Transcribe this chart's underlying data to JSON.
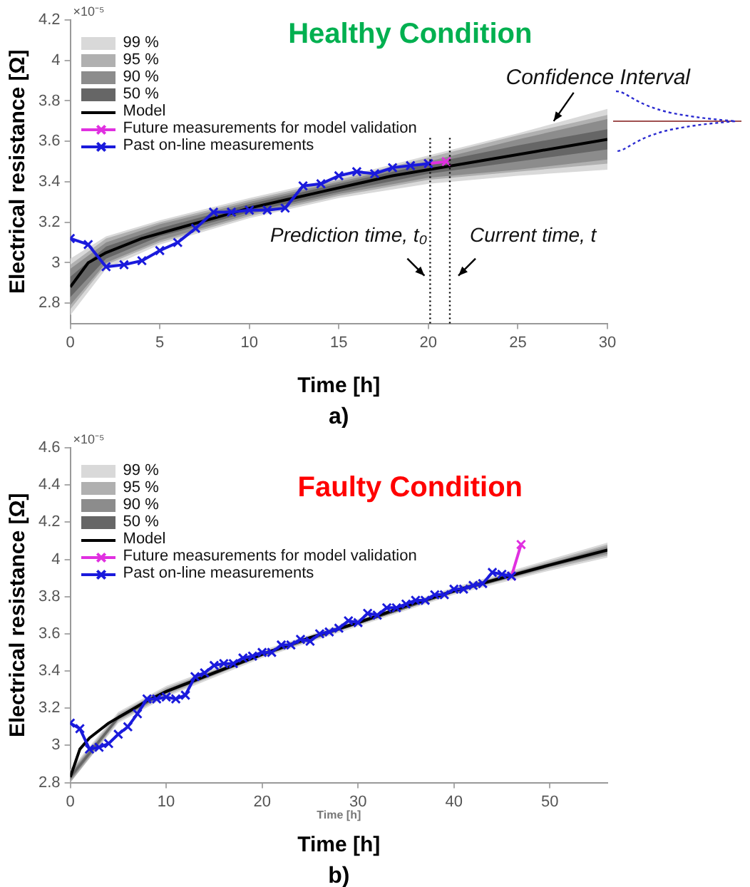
{
  "chart_data": [
    {
      "type": "line",
      "title": "Healthy Condition",
      "xlabel": "Time [h]",
      "ylabel": "Electrical resistance [Ω]",
      "xlim": [
        0,
        30
      ],
      "xticks": [
        0,
        5,
        10,
        15,
        20,
        25,
        30
      ],
      "ylim": [
        2.7,
        4.2
      ],
      "yticks": [
        2.8,
        3,
        3.2,
        3.4,
        3.6,
        3.8,
        4,
        4.2
      ],
      "grid": false,
      "legend": "top left",
      "series": [
        {
          "name": "99 %",
          "type": "line",
          "color": "#d9d9d9",
          "x": [
            0,
            2,
            5,
            10,
            15,
            20,
            25,
            30
          ],
          "values": [
            null,
            null,
            null,
            null,
            null,
            null,
            null,
            null
          ],
          "lower": [
            2.74,
            2.97,
            3.09,
            3.22,
            3.32,
            3.39,
            3.43,
            3.46
          ],
          "upper": [
            3.02,
            3.13,
            3.21,
            3.32,
            3.42,
            3.53,
            3.64,
            3.76
          ]
        },
        {
          "name": "95 %",
          "type": "line",
          "color": "#b0b0b0",
          "x": [
            0,
            2,
            5,
            10,
            15,
            20,
            25,
            30
          ],
          "values": [
            null,
            null,
            null,
            null,
            null,
            null,
            null,
            null
          ],
          "lower": [
            2.77,
            2.99,
            3.1,
            3.23,
            3.33,
            3.41,
            3.45,
            3.49
          ],
          "upper": [
            2.99,
            3.12,
            3.2,
            3.31,
            3.41,
            3.52,
            3.63,
            3.73
          ]
        },
        {
          "name": "90 %",
          "type": "line",
          "color": "#8c8c8c",
          "x": [
            0,
            2,
            5,
            10,
            15,
            20,
            25,
            30
          ],
          "values": [
            null,
            null,
            null,
            null,
            null,
            null,
            null,
            null
          ],
          "lower": [
            2.79,
            3,
            3.11,
            3.24,
            3.34,
            3.42,
            3.46,
            3.51
          ],
          "upper": [
            2.97,
            3.1,
            3.19,
            3.3,
            3.4,
            3.5,
            3.61,
            3.71
          ]
        },
        {
          "name": "50 %",
          "type": "line",
          "color": "#666666",
          "x": [
            0,
            2,
            5,
            10,
            15,
            20,
            25,
            30
          ],
          "values": [
            null,
            null,
            null,
            null,
            null,
            null,
            null,
            null
          ],
          "lower": [
            2.83,
            3.02,
            3.13,
            3.25,
            3.35,
            3.44,
            3.5,
            3.56
          ],
          "upper": [
            2.93,
            3.08,
            3.17,
            3.29,
            3.39,
            3.49,
            3.58,
            3.66
          ]
        },
        {
          "name": "Model",
          "type": "line",
          "color": "#000000",
          "marker": "none",
          "x": [
            0,
            1,
            2,
            4,
            6,
            8,
            10,
            12,
            14,
            16,
            18,
            20,
            22,
            24,
            26,
            28,
            30
          ],
          "values": [
            2.88,
            3,
            3.05,
            3.12,
            3.17,
            3.22,
            3.27,
            3.31,
            3.35,
            3.39,
            3.43,
            3.46,
            3.49,
            3.52,
            3.55,
            3.58,
            3.61
          ]
        },
        {
          "name": "Future measurements for model validation",
          "type": "line",
          "color": "#e030e0",
          "marker": "cross",
          "x": [
            20,
            21
          ],
          "values": [
            3.49,
            3.5
          ]
        },
        {
          "name": "Past on-line measurements",
          "type": "line",
          "color": "#1a1adc",
          "marker": "cross",
          "x": [
            0,
            1,
            2,
            3,
            4,
            5,
            6,
            7,
            8,
            9,
            10,
            11,
            12,
            13,
            14,
            15,
            16,
            17,
            18,
            19,
            20
          ],
          "values": [
            3.12,
            3.09,
            2.98,
            2.99,
            3.01,
            3.06,
            3.1,
            3.17,
            3.25,
            3.25,
            3.26,
            3.26,
            3.27,
            3.38,
            3.39,
            3.43,
            3.45,
            3.44,
            3.47,
            3.48,
            3.49
          ]
        }
      ],
      "ref_lines": [
        {
          "axis": "x",
          "value": 20.1,
          "label": "Prediction time, t₀",
          "line_style": "dotted"
        },
        {
          "axis": "x",
          "value": 21.2,
          "label": "Current time, t",
          "line_style": "dotted"
        }
      ],
      "annotations": [
        "×10⁻⁵",
        {
          "text": "Confidence Interval",
          "x": 27,
          "y": 3.7
        },
        "a)"
      ]
    },
    {
      "type": "line",
      "title": "Faulty Condition",
      "xlabel": "Time [h]",
      "ylabel": "Electrical resistance [Ω]",
      "xlim": [
        0,
        56
      ],
      "xticks": [
        0,
        10,
        20,
        30,
        40,
        50
      ],
      "ylim": [
        2.8,
        4.6
      ],
      "yticks": [
        2.8,
        3,
        3.2,
        3.4,
        3.6,
        3.8,
        4,
        4.2,
        4.4,
        4.6
      ],
      "grid": false,
      "legend": "top left",
      "series": [
        {
          "name": "99 %",
          "type": "line",
          "color": "#d9d9d9",
          "x": [
            0,
            5,
            10,
            20,
            30,
            40,
            50,
            56
          ],
          "values": [
            null,
            null,
            null,
            null,
            null,
            null,
            null,
            null
          ],
          "lower": [
            2.8,
            3.12,
            3.26,
            3.47,
            3.64,
            3.81,
            3.94,
            4.01
          ],
          "upper": [
            2.87,
            3.18,
            3.32,
            3.51,
            3.68,
            3.85,
            4,
            4.09
          ]
        },
        {
          "name": "95 %",
          "type": "line",
          "color": "#b0b0b0",
          "x": [
            0,
            5,
            10,
            20,
            30,
            40,
            50,
            56
          ],
          "values": [
            null,
            null,
            null,
            null,
            null,
            null,
            null,
            null
          ],
          "lower": [
            2.8,
            3.13,
            3.27,
            3.48,
            3.65,
            3.82,
            3.95,
            4.02
          ],
          "upper": [
            2.86,
            3.17,
            3.31,
            3.5,
            3.67,
            3.84,
            3.99,
            4.08
          ]
        },
        {
          "name": "90 %",
          "type": "line",
          "color": "#8c8c8c",
          "x": [
            0,
            5,
            10,
            20,
            30,
            40,
            50,
            56
          ],
          "values": [
            null,
            null,
            null,
            null,
            null,
            null,
            null,
            null
          ],
          "lower": [
            2.81,
            3.14,
            3.28,
            3.48,
            3.65,
            3.82,
            3.96,
            4.03
          ],
          "upper": [
            2.85,
            3.16,
            3.3,
            3.5,
            3.67,
            3.84,
            3.98,
            4.07
          ]
        },
        {
          "name": "50 %",
          "type": "line",
          "color": "#666666",
          "x": [
            0,
            5,
            10,
            20,
            30,
            40,
            50,
            56
          ],
          "values": [
            null,
            null,
            null,
            null,
            null,
            null,
            null,
            null
          ],
          "lower": [
            2.82,
            3.14,
            3.28,
            3.48,
            3.65,
            3.82,
            3.96,
            4.04
          ],
          "upper": [
            2.84,
            3.16,
            3.3,
            3.5,
            3.67,
            3.84,
            3.98,
            4.06
          ]
        },
        {
          "name": "Model",
          "type": "line",
          "color": "#000000",
          "marker": "none",
          "x": [
            0,
            1,
            2,
            4,
            6,
            8,
            10,
            12,
            15,
            20,
            25,
            30,
            35,
            40,
            45,
            50,
            56
          ],
          "values": [
            2.83,
            2.98,
            3.04,
            3.12,
            3.18,
            3.24,
            3.29,
            3.33,
            3.39,
            3.49,
            3.58,
            3.66,
            3.75,
            3.83,
            3.9,
            3.97,
            4.05
          ]
        },
        {
          "name": "Future measurements for model validation",
          "type": "line",
          "color": "#e030e0",
          "marker": "cross",
          "x": [
            46,
            47
          ],
          "values": [
            3.91,
            4.08
          ]
        },
        {
          "name": "Past on-line measurements",
          "type": "line",
          "color": "#1a1adc",
          "marker": "cross",
          "x": [
            0,
            1,
            2,
            3,
            4,
            5,
            6,
            7,
            8,
            9,
            10,
            11,
            12,
            13,
            14,
            15,
            16,
            17,
            18,
            19,
            20,
            21,
            22,
            23,
            24,
            25,
            26,
            27,
            28,
            29,
            30,
            31,
            32,
            33,
            34,
            35,
            36,
            37,
            38,
            39,
            40,
            41,
            42,
            43,
            44,
            45,
            46
          ],
          "values": [
            3.12,
            3.09,
            2.98,
            2.99,
            3.01,
            3.06,
            3.1,
            3.17,
            3.25,
            3.25,
            3.26,
            3.25,
            3.27,
            3.37,
            3.39,
            3.43,
            3.44,
            3.44,
            3.47,
            3.48,
            3.5,
            3.5,
            3.54,
            3.54,
            3.57,
            3.56,
            3.6,
            3.61,
            3.63,
            3.67,
            3.66,
            3.71,
            3.7,
            3.74,
            3.74,
            3.76,
            3.78,
            3.78,
            3.81,
            3.81,
            3.84,
            3.84,
            3.86,
            3.87,
            3.93,
            3.92,
            3.91
          ]
        }
      ],
      "annotations": [
        "×10⁻⁵",
        "Time [h]",
        "b)"
      ]
    }
  ]
}
